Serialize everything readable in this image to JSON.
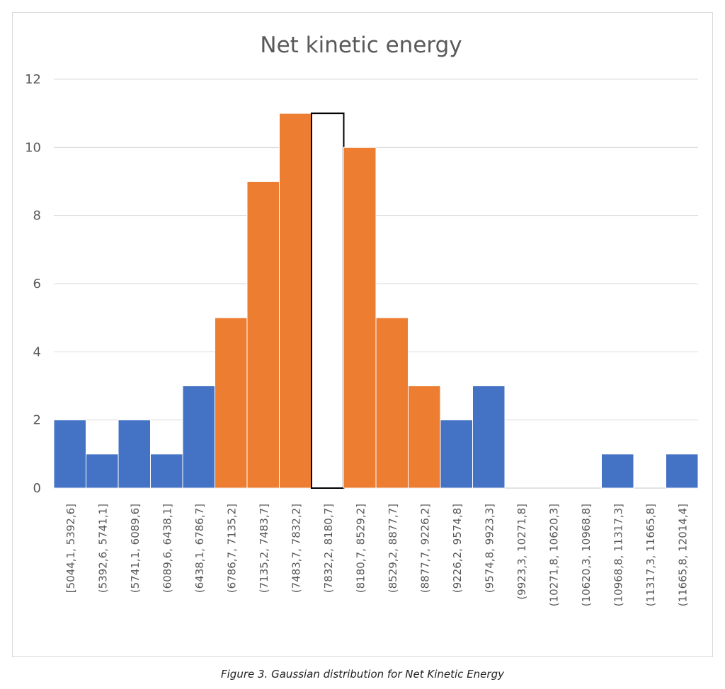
{
  "caption": "Figure 3. Gaussian distribution for Net Kinetic Energy",
  "colors": {
    "blue": "#4472c4",
    "orange": "#ed7d31",
    "highlight": "#ffffff",
    "grid": "#d9d9d9",
    "text": "#595959"
  },
  "chart_data": {
    "type": "bar",
    "title": "Net kinetic energy",
    "xlabel": "",
    "ylabel": "",
    "ylim": [
      0,
      12
    ],
    "yticks": [
      0,
      2,
      4,
      6,
      8,
      10,
      12
    ],
    "grid": true,
    "categories": [
      "[5044,1, 5392,6]",
      "(5392,6, 5741,1]",
      "(5741,1, 6089,6]",
      "(6089,6, 6438,1]",
      "(6438,1, 6786,7]",
      "(6786,7, 7135,2]",
      "(7135,2, 7483,7]",
      "(7483,7, 7832,2]",
      "(7832,2, 8180,7]",
      "(8180,7, 8529,2]",
      "(8529,2, 8877,7]",
      "(8877,7, 9226,2]",
      "(9226,2, 9574,8]",
      "(9574,8, 9923,3]",
      "(9923,3, 10271,8]",
      "(10271,8, 10620,3]",
      "(10620,3, 10968,8]",
      "(10968,8, 11317,3]",
      "(11317,3, 11665,8]",
      "(11665,8, 12014,4]"
    ],
    "values": [
      2,
      1,
      2,
      1,
      3,
      5,
      9,
      11,
      11,
      10,
      5,
      3,
      2,
      3,
      0,
      0,
      0,
      1,
      0,
      1
    ],
    "bar_colors": [
      "blue",
      "blue",
      "blue",
      "blue",
      "blue",
      "orange",
      "orange",
      "orange",
      "highlight",
      "orange",
      "orange",
      "orange",
      "blue",
      "blue",
      "blue",
      "blue",
      "blue",
      "blue",
      "blue",
      "blue"
    ]
  }
}
